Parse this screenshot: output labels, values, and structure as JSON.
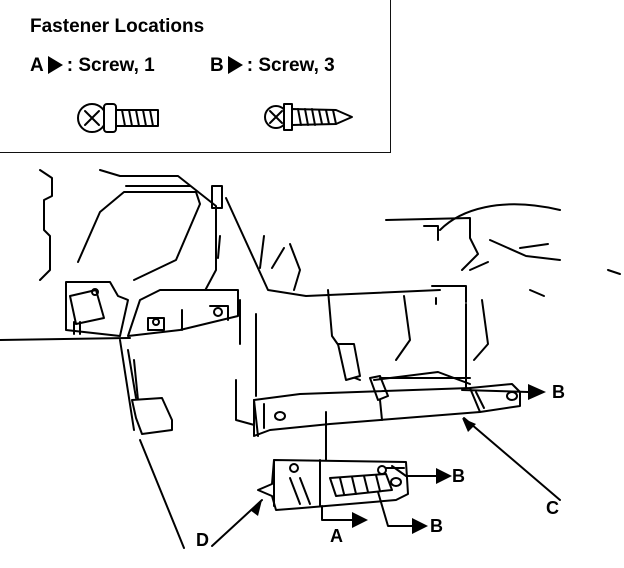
{
  "legend": {
    "title": "Fastener Locations",
    "fasteners": [
      {
        "key": "A",
        "label": ": Screw, 1"
      },
      {
        "key": "B",
        "label": ": Screw, 3"
      }
    ]
  },
  "callouts": {
    "A": "A",
    "B": "B",
    "C": "C",
    "D": "D"
  }
}
